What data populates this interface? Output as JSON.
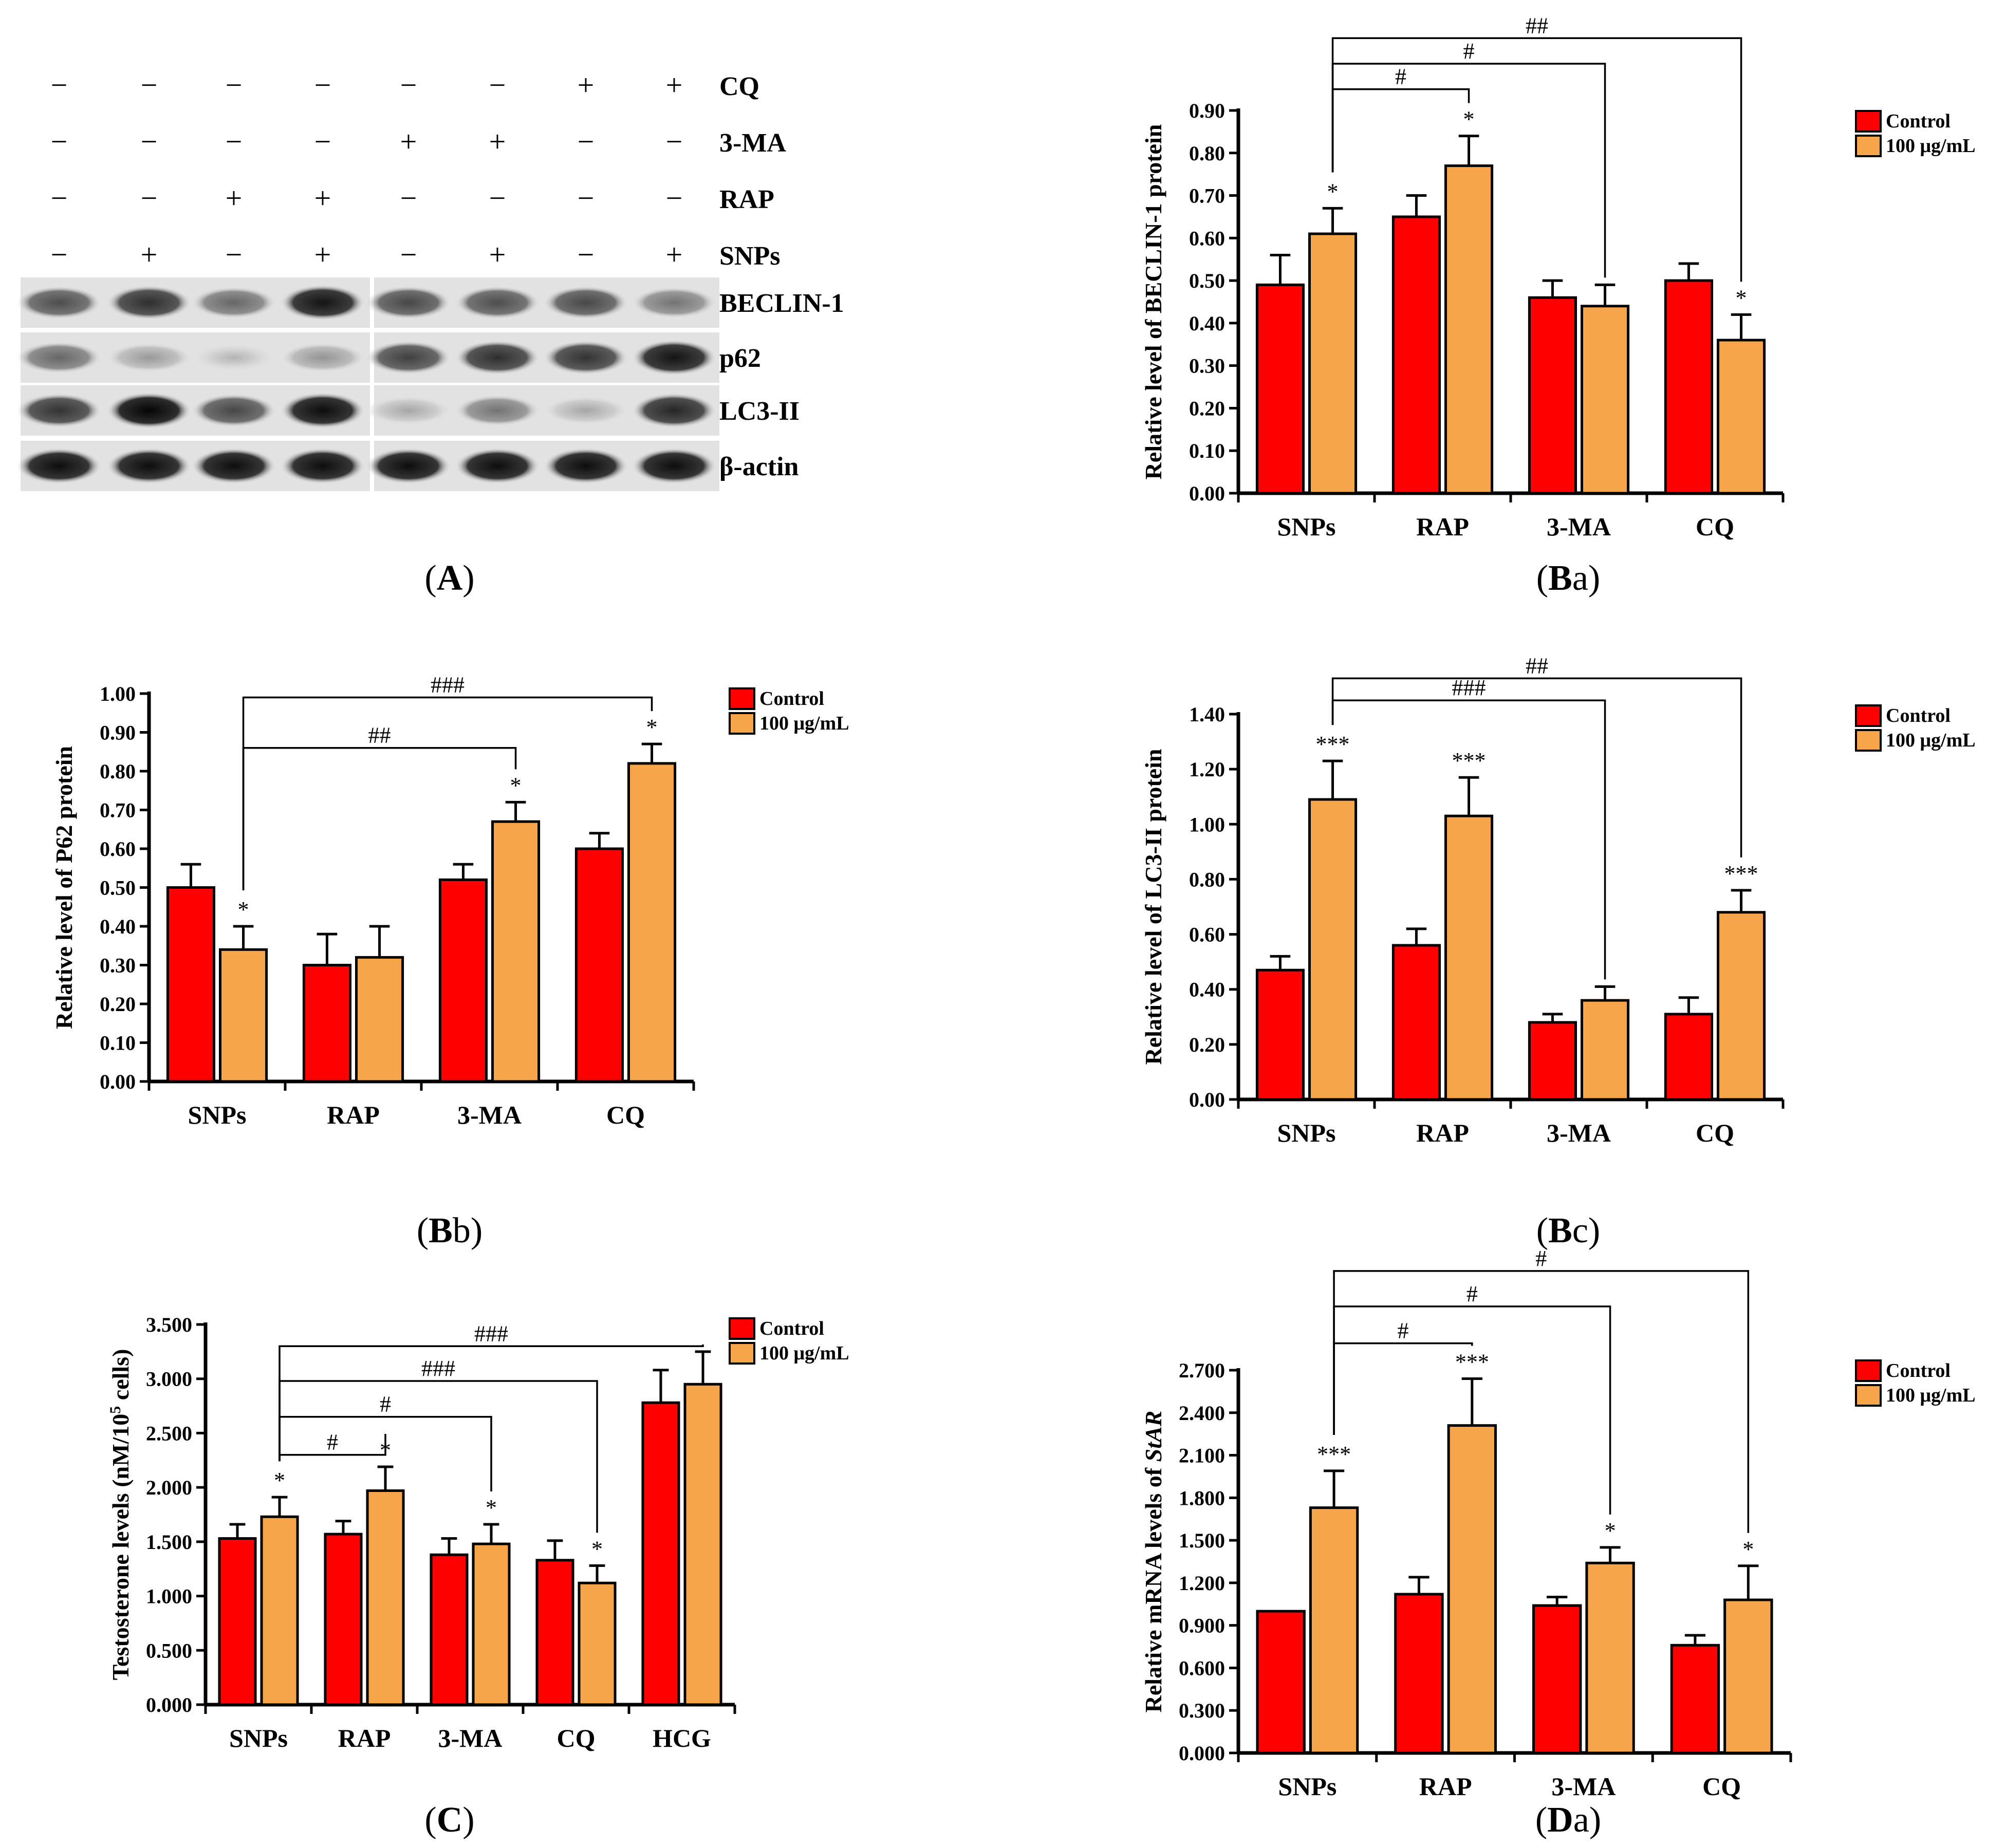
{
  "panel_captions": {
    "A": "A",
    "Ba": "Ba",
    "Bb": "Bb",
    "Bc": "Bc",
    "C": "C",
    "Da": "Da"
  },
  "blot": {
    "treatment_rows": [
      {
        "name": "CQ",
        "signs": [
          "−",
          "−",
          "−",
          "−",
          "−",
          "−",
          "+",
          "+"
        ]
      },
      {
        "name": "3-MA",
        "signs": [
          "−",
          "−",
          "−",
          "−",
          "+",
          "+",
          "−",
          "−"
        ]
      },
      {
        "name": "RAP",
        "signs": [
          "−",
          "−",
          "+",
          "+",
          "−",
          "−",
          "−",
          "−"
        ]
      },
      {
        "name": "SNPs",
        "signs": [
          "−",
          "+",
          "−",
          "+",
          "−",
          "+",
          "−",
          "+"
        ]
      }
    ],
    "bands": [
      {
        "name": "BECLIN-1",
        "intensity": [
          0.7,
          0.82,
          0.6,
          0.92,
          0.72,
          0.7,
          0.72,
          0.55
        ]
      },
      {
        "name": "p62",
        "intensity": [
          0.6,
          0.4,
          0.3,
          0.42,
          0.75,
          0.82,
          0.8,
          0.92
        ]
      },
      {
        "name": "LC3-II",
        "intensity": [
          0.8,
          0.98,
          0.72,
          0.95,
          0.35,
          0.55,
          0.35,
          0.85
        ]
      },
      {
        "name": "β-actin",
        "intensity": [
          0.95,
          0.95,
          0.95,
          0.95,
          0.95,
          0.95,
          0.95,
          0.95
        ]
      }
    ]
  },
  "legend": {
    "control": "Control",
    "treated": "100 μg/mL"
  },
  "colors": {
    "control": "#ff0000",
    "treated": "#f7a54a"
  },
  "chart_data": [
    {
      "id": "Ba",
      "type": "bar",
      "ylabel": "Relative level of BECLIN-1 protein",
      "categories": [
        "SNPs",
        "RAP",
        "3-MA",
        "CQ"
      ],
      "yticks": [
        "0.00",
        "0.10",
        "0.20",
        "0.30",
        "0.40",
        "0.50",
        "0.60",
        "0.70",
        "0.80",
        "0.90"
      ],
      "ylim": [
        0,
        0.9
      ],
      "series": [
        {
          "name": "Control",
          "values": [
            0.49,
            0.65,
            0.46,
            0.5
          ],
          "errors": [
            0.07,
            0.05,
            0.04,
            0.04
          ]
        },
        {
          "name": "100 μg/mL",
          "values": [
            0.61,
            0.77,
            0.44,
            0.36
          ],
          "errors": [
            0.06,
            0.07,
            0.05,
            0.06
          ]
        }
      ],
      "stars": [
        {
          "cat": 0,
          "s": 1,
          "t": "*"
        },
        {
          "cat": 1,
          "s": 1,
          "t": "*"
        },
        {
          "cat": 3,
          "s": 1,
          "t": "*"
        }
      ],
      "brackets": [
        {
          "to": 1,
          "label": "#",
          "y": 0.95
        },
        {
          "to": 2,
          "label": "#",
          "y": 1.01
        },
        {
          "to": 3,
          "label": "##",
          "y": 1.07
        }
      ]
    },
    {
      "id": "Bb",
      "type": "bar",
      "ylabel": "Relative level of P62 protein",
      "categories": [
        "SNPs",
        "RAP",
        "3-MA",
        "CQ"
      ],
      "yticks": [
        "0.00",
        "0.10",
        "0.20",
        "0.30",
        "0.40",
        "0.50",
        "0.60",
        "0.70",
        "0.80",
        "0.90",
        "1.00"
      ],
      "ylim": [
        0,
        1.0
      ],
      "series": [
        {
          "name": "Control",
          "values": [
            0.5,
            0.3,
            0.52,
            0.6
          ],
          "errors": [
            0.06,
            0.08,
            0.04,
            0.04
          ]
        },
        {
          "name": "100 μg/mL",
          "values": [
            0.34,
            0.32,
            0.67,
            0.82
          ],
          "errors": [
            0.06,
            0.08,
            0.05,
            0.05
          ]
        }
      ],
      "stars": [
        {
          "cat": 0,
          "s": 1,
          "t": "*"
        },
        {
          "cat": 2,
          "s": 1,
          "t": "*"
        },
        {
          "cat": 3,
          "s": 1,
          "t": "*"
        }
      ],
      "brackets": [
        {
          "to": 2,
          "label": "##",
          "y": 0.86
        },
        {
          "to": 3,
          "label": "###",
          "y": 0.99
        }
      ]
    },
    {
      "id": "Bc",
      "type": "bar",
      "ylabel": "Relative level of LC3-II protein",
      "categories": [
        "SNPs",
        "RAP",
        "3-MA",
        "CQ"
      ],
      "yticks": [
        "0.00",
        "0.20",
        "0.40",
        "0.60",
        "0.80",
        "1.00",
        "1.20",
        "1.40"
      ],
      "ylim": [
        0,
        1.4
      ],
      "series": [
        {
          "name": "Control",
          "values": [
            0.47,
            0.56,
            0.28,
            0.31
          ],
          "errors": [
            0.05,
            0.06,
            0.03,
            0.06
          ]
        },
        {
          "name": "100 μg/mL",
          "values": [
            1.09,
            1.03,
            0.36,
            0.68
          ],
          "errors": [
            0.14,
            0.14,
            0.05,
            0.08
          ]
        }
      ],
      "stars": [
        {
          "cat": 0,
          "s": 1,
          "t": "***"
        },
        {
          "cat": 1,
          "s": 1,
          "t": "***"
        },
        {
          "cat": 3,
          "s": 1,
          "t": "***"
        }
      ],
      "brackets": [
        {
          "to": 2,
          "label": "###",
          "y": 1.45
        },
        {
          "to": 3,
          "label": "##",
          "y": 1.53
        }
      ]
    },
    {
      "id": "C",
      "type": "bar",
      "ylabel": "Testosterone levels (nM/10",
      "ylabel_sup": "5",
      "ylabel_end": " cells)",
      "categories": [
        "SNPs",
        "RAP",
        "3-MA",
        "CQ",
        "HCG"
      ],
      "yticks": [
        "0.000",
        "0.500",
        "1.000",
        "1.500",
        "2.000",
        "2.500",
        "3.000",
        "3.500"
      ],
      "ylim": [
        0,
        3.5
      ],
      "series": [
        {
          "name": "Control",
          "values": [
            1.53,
            1.57,
            1.38,
            1.33,
            2.78
          ],
          "errors": [
            0.13,
            0.12,
            0.15,
            0.18,
            0.3
          ]
        },
        {
          "name": "100 μg/mL",
          "values": [
            1.73,
            1.97,
            1.48,
            1.12,
            2.95
          ],
          "errors": [
            0.18,
            0.22,
            0.18,
            0.16,
            0.3
          ]
        }
      ],
      "stars": [
        {
          "cat": 0,
          "s": 1,
          "t": "*"
        },
        {
          "cat": 1,
          "s": 1,
          "t": "*"
        },
        {
          "cat": 2,
          "s": 1,
          "t": "*"
        },
        {
          "cat": 3,
          "s": 1,
          "t": "*"
        }
      ],
      "brackets": [
        {
          "to": 1,
          "label": "#",
          "y": 2.3
        },
        {
          "to": 2,
          "label": "#",
          "y": 2.65
        },
        {
          "to": 3,
          "label": "###",
          "y": 2.98
        },
        {
          "to": 4,
          "label": "###",
          "y": 3.3
        }
      ]
    },
    {
      "id": "Da",
      "type": "bar",
      "ylabel": "Relative mRNA levels of ",
      "ylabel_em": "StAR",
      "categories": [
        "SNPs",
        "RAP",
        "3-MA",
        "CQ"
      ],
      "yticks": [
        "0.000",
        "0.300",
        "0.600",
        "0.900",
        "1.200",
        "1.500",
        "1.800",
        "2.100",
        "2.400",
        "2.700"
      ],
      "ylim": [
        0,
        2.7
      ],
      "series": [
        {
          "name": "Control",
          "values": [
            1.0,
            1.12,
            1.04,
            0.76
          ],
          "errors": [
            0,
            0.12,
            0.06,
            0.07
          ]
        },
        {
          "name": "100 μg/mL",
          "values": [
            1.73,
            2.31,
            1.34,
            1.08
          ],
          "errors": [
            0.26,
            0.33,
            0.11,
            0.24
          ]
        }
      ],
      "stars": [
        {
          "cat": 0,
          "s": 1,
          "t": "***"
        },
        {
          "cat": 1,
          "s": 1,
          "t": "***"
        },
        {
          "cat": 2,
          "s": 1,
          "t": "*"
        },
        {
          "cat": 3,
          "s": 1,
          "t": "*"
        }
      ],
      "brackets": [
        {
          "to": 1,
          "label": "#",
          "y": 2.89
        },
        {
          "to": 2,
          "label": "#",
          "y": 3.15
        },
        {
          "to": 3,
          "label": "#",
          "y": 3.4
        }
      ]
    }
  ]
}
